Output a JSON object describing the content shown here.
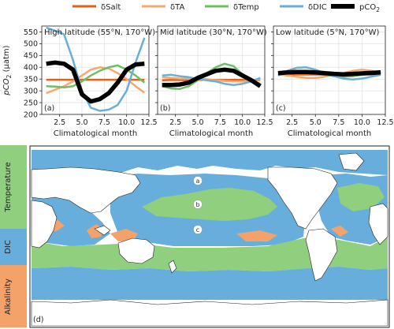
{
  "colors": {
    "salt": "#e0611a",
    "ta": "#f6a86d",
    "temp": "#6fbd65",
    "dic": "#6baed6",
    "pco2": "#000000",
    "temperature_region": "#8fcf7d",
    "dic_region": "#67aedc",
    "alkalinity_region": "#f4a26a"
  },
  "legend": {
    "salt": "δSalt",
    "ta": "δTA",
    "temp": "δTemp",
    "dic": "δDIC",
    "pco2_prefix": "pCO",
    "pco2_sub": "2"
  },
  "chart_data": [
    {
      "type": "line",
      "title": "High latitude (55°N, 170°W)",
      "panel_label": "(a)",
      "xlabel": "Climatological month",
      "ylabel_prefix": "pCO",
      "ylabel_sub": "2",
      "ylabel_suffix": " (µatm)",
      "xlim": [
        0.5,
        12.5
      ],
      "ylim": [
        200,
        575
      ],
      "xticks": [
        2.5,
        5.0,
        7.5,
        10.0,
        12.5
      ],
      "xtick_labels": [
        "2.5",
        "5.0",
        "7.5",
        "10.0",
        "12.5"
      ],
      "yticks": [
        200,
        250,
        300,
        350,
        400,
        450,
        500,
        550
      ],
      "x": [
        1,
        2,
        3,
        4,
        5,
        6,
        7,
        8,
        9,
        10,
        11,
        12
      ],
      "series": [
        {
          "key": "salt",
          "values": [
            347,
            347,
            347,
            347,
            347,
            347,
            347,
            347,
            347,
            347,
            347,
            347
          ]
        },
        {
          "key": "ta",
          "values": [
            290,
            305,
            320,
            340,
            365,
            390,
            400,
            395,
            375,
            350,
            320,
            292
          ]
        },
        {
          "key": "temp",
          "values": [
            320,
            318,
            315,
            320,
            340,
            365,
            385,
            400,
            408,
            390,
            365,
            335
          ]
        },
        {
          "key": "dic",
          "values": [
            568,
            555,
            540,
            430,
            300,
            228,
            215,
            220,
            240,
            300,
            420,
            525
          ]
        },
        {
          "key": "pco2",
          "values": [
            415,
            420,
            415,
            390,
            285,
            255,
            265,
            290,
            335,
            390,
            412,
            415
          ]
        }
      ]
    },
    {
      "type": "line",
      "title": "Mid latitude (30°N, 170°W)",
      "panel_label": "(b)",
      "xlabel": "Climatological month",
      "xlim": [
        0.5,
        12.5
      ],
      "ylim": [
        200,
        575
      ],
      "xticks": [
        2.5,
        5.0,
        7.5,
        10.0,
        12.5
      ],
      "xtick_labels": [
        "2.5",
        "5.0",
        "7.5",
        "10.0",
        "12.5"
      ],
      "yticks": [
        200,
        250,
        300,
        350,
        400,
        450,
        500,
        550
      ],
      "x": [
        1,
        2,
        3,
        4,
        5,
        6,
        7,
        8,
        9,
        10,
        11,
        12
      ],
      "series": [
        {
          "key": "salt",
          "values": [
            345,
            346,
            346,
            345,
            346,
            347,
            346,
            346,
            347,
            346,
            346,
            346
          ]
        },
        {
          "key": "ta",
          "values": [
            358,
            355,
            352,
            352,
            350,
            350,
            345,
            342,
            340,
            340,
            345,
            350
          ]
        },
        {
          "key": "temp",
          "values": [
            320,
            310,
            308,
            320,
            345,
            375,
            400,
            415,
            405,
            370,
            345,
            330
          ]
        },
        {
          "key": "dic",
          "values": [
            365,
            368,
            362,
            358,
            350,
            345,
            340,
            330,
            325,
            330,
            340,
            355
          ]
        },
        {
          "key": "pco2",
          "values": [
            325,
            325,
            327,
            335,
            355,
            370,
            385,
            390,
            385,
            365,
            345,
            320
          ]
        }
      ]
    },
    {
      "type": "line",
      "title": "Low latitude (5°N, 170°W)",
      "panel_label": "(c)",
      "xlabel": "Climatological month",
      "xlim": [
        0.5,
        12.5
      ],
      "ylim": [
        200,
        575
      ],
      "xticks": [
        2.5,
        5.0,
        7.5,
        10.0,
        12.5
      ],
      "xtick_labels": [
        "2.5",
        "5.0",
        "7.5",
        "10.0",
        "12.5"
      ],
      "yticks": [
        200,
        250,
        300,
        350,
        400,
        450,
        500,
        550
      ],
      "x": [
        1,
        2,
        3,
        4,
        5,
        6,
        7,
        8,
        9,
        10,
        11,
        12
      ],
      "series": [
        {
          "key": "salt",
          "values": [
            368,
            368,
            369,
            369,
            369,
            368,
            368,
            368,
            368,
            369,
            369,
            368
          ]
        },
        {
          "key": "ta",
          "values": [
            370,
            365,
            360,
            355,
            355,
            360,
            368,
            375,
            385,
            390,
            385,
            375
          ]
        },
        {
          "key": "temp",
          "values": [
            375,
            380,
            385,
            382,
            375,
            368,
            362,
            360,
            362,
            368,
            372,
            375
          ]
        },
        {
          "key": "dic",
          "values": [
            365,
            385,
            398,
            400,
            390,
            375,
            362,
            352,
            348,
            352,
            360,
            368
          ]
        },
        {
          "key": "pco2",
          "values": [
            375,
            378,
            380,
            380,
            378,
            375,
            372,
            370,
            372,
            374,
            376,
            378
          ]
        }
      ]
    }
  ],
  "map": {
    "panel_label": "(d)",
    "point_labels": [
      "a",
      "b",
      "c"
    ],
    "side_bar": [
      "Temperature",
      "DIC",
      "Alkalinity"
    ]
  }
}
